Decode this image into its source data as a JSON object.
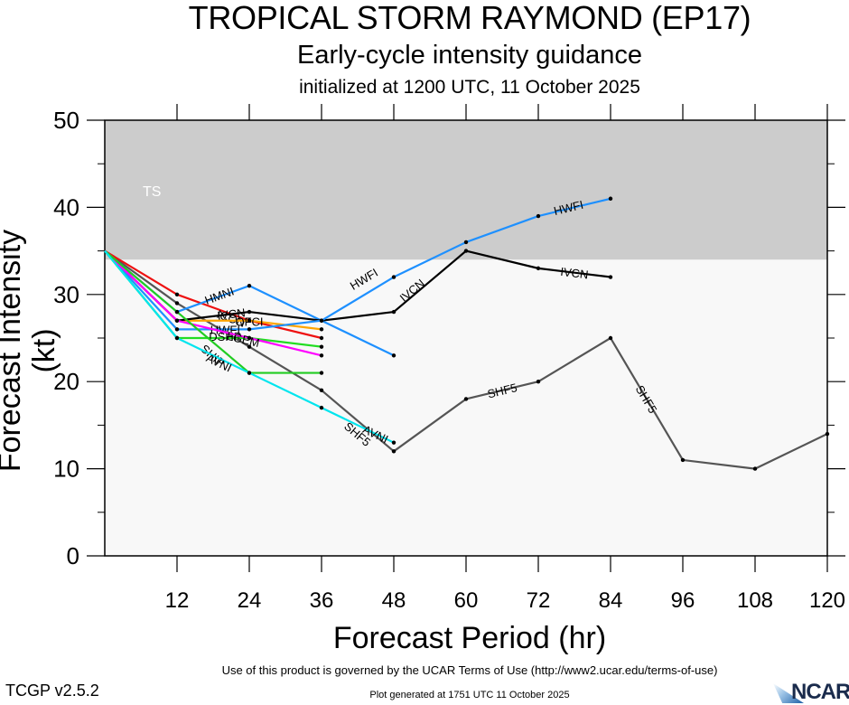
{
  "header": {
    "title": "TROPICAL STORM RAYMOND (EP17)",
    "subtitle": "Early-cycle intensity guidance",
    "initialized": "initialized at 1200 UTC, 11 October 2025"
  },
  "footer": {
    "terms": "Use of this product is governed by the UCAR Terms of Use (http://www2.ucar.edu/terms-of-use)",
    "version": "TCGP v2.5.2",
    "generated": "Plot generated at 1751 UTC   11 October 2025",
    "logo": "NCAR"
  },
  "chart_data": {
    "type": "line",
    "title": "TROPICAL STORM RAYMOND (EP17)",
    "xlabel": "Forecast Period (hr)",
    "ylabel": "Forecast Intensity (kt)",
    "xlim": [
      0,
      120
    ],
    "ylim": [
      0,
      50
    ],
    "xticks": [
      12,
      24,
      36,
      48,
      60,
      72,
      84,
      96,
      108,
      120
    ],
    "yticks": [
      0,
      10,
      20,
      30,
      40,
      50
    ],
    "yminor_ticks": [
      5,
      15,
      25,
      35,
      45
    ],
    "grid": false,
    "bands": [
      {
        "label": "TS",
        "from": 34,
        "to": 50,
        "color": "#cccccc"
      }
    ],
    "background_color": "#f8f8f8",
    "series": [
      {
        "name": "SHF5",
        "color": "#555555",
        "x": [
          0,
          12,
          24,
          36,
          48,
          60,
          72,
          84,
          96,
          108,
          120
        ],
        "values": [
          35,
          29,
          24,
          19,
          12,
          18,
          20,
          25,
          11,
          10,
          14
        ],
        "labels_at": [
          [
            42,
            14
          ],
          [
            66,
            19
          ],
          [
            90,
            18
          ]
        ]
      },
      {
        "name": "ICON",
        "color": "#ee1111",
        "x": [
          0,
          12,
          24,
          36
        ],
        "values": [
          35,
          30,
          27,
          25
        ],
        "labels_at": [
          [
            21,
            27.3
          ]
        ]
      },
      {
        "name": "OFCI",
        "color": "#ffa500",
        "x": [
          0,
          12,
          24,
          36
        ],
        "values": [
          35,
          27,
          27,
          26
        ],
        "labels_at": [
          [
            24,
            26.9
          ]
        ]
      },
      {
        "name": "HMNI",
        "color": "#1e90ff",
        "x": [
          0,
          12,
          24,
          36,
          48
        ],
        "values": [
          35,
          28,
          31,
          27,
          23
        ],
        "labels_at": [
          [
            19,
            29.9
          ]
        ]
      },
      {
        "name": "IVCN",
        "color": "#000000",
        "x": [
          0,
          12,
          24,
          36,
          48,
          60,
          72,
          84
        ],
        "values": [
          35,
          27,
          28,
          27,
          28,
          35,
          33,
          32
        ],
        "labels_at": [
          [
            21,
            27.8
          ],
          [
            51,
            30.5
          ],
          [
            78,
            32.5
          ]
        ]
      },
      {
        "name": "HWFI",
        "color": "#1e90ff",
        "x": [
          0,
          12,
          24,
          36,
          48,
          60,
          72,
          84
        ],
        "values": [
          35,
          26,
          26,
          27,
          32,
          36,
          39,
          41
        ],
        "labels_at": [
          [
            20,
            26
          ],
          [
            43,
            31.8
          ],
          [
            77,
            40
          ]
        ]
      },
      {
        "name": "DSHP",
        "color": "#22dd22",
        "x": [
          0,
          12,
          24,
          36
        ],
        "values": [
          35,
          25,
          25,
          24
        ],
        "labels_at": [
          [
            20,
            25.2
          ]
        ]
      },
      {
        "name": "LGEM",
        "color": "#ff00ff",
        "x": [
          0,
          12,
          24,
          36
        ],
        "values": [
          35,
          27,
          25,
          23
        ],
        "labels_at": [
          [
            23,
            24.9
          ]
        ]
      },
      {
        "name": "SHIP",
        "color": "#22cc22",
        "x": [
          0,
          12,
          24,
          36
        ],
        "values": [
          35,
          28,
          21,
          21
        ],
        "labels_at": [
          [
            18,
            23
          ]
        ]
      },
      {
        "name": "AVNI",
        "color": "#00e5ee",
        "x": [
          0,
          12,
          24,
          36,
          48
        ],
        "values": [
          35,
          25,
          21,
          17,
          13
        ],
        "labels_at": [
          [
            19,
            22.2
          ],
          [
            45,
            14
          ]
        ]
      }
    ]
  }
}
